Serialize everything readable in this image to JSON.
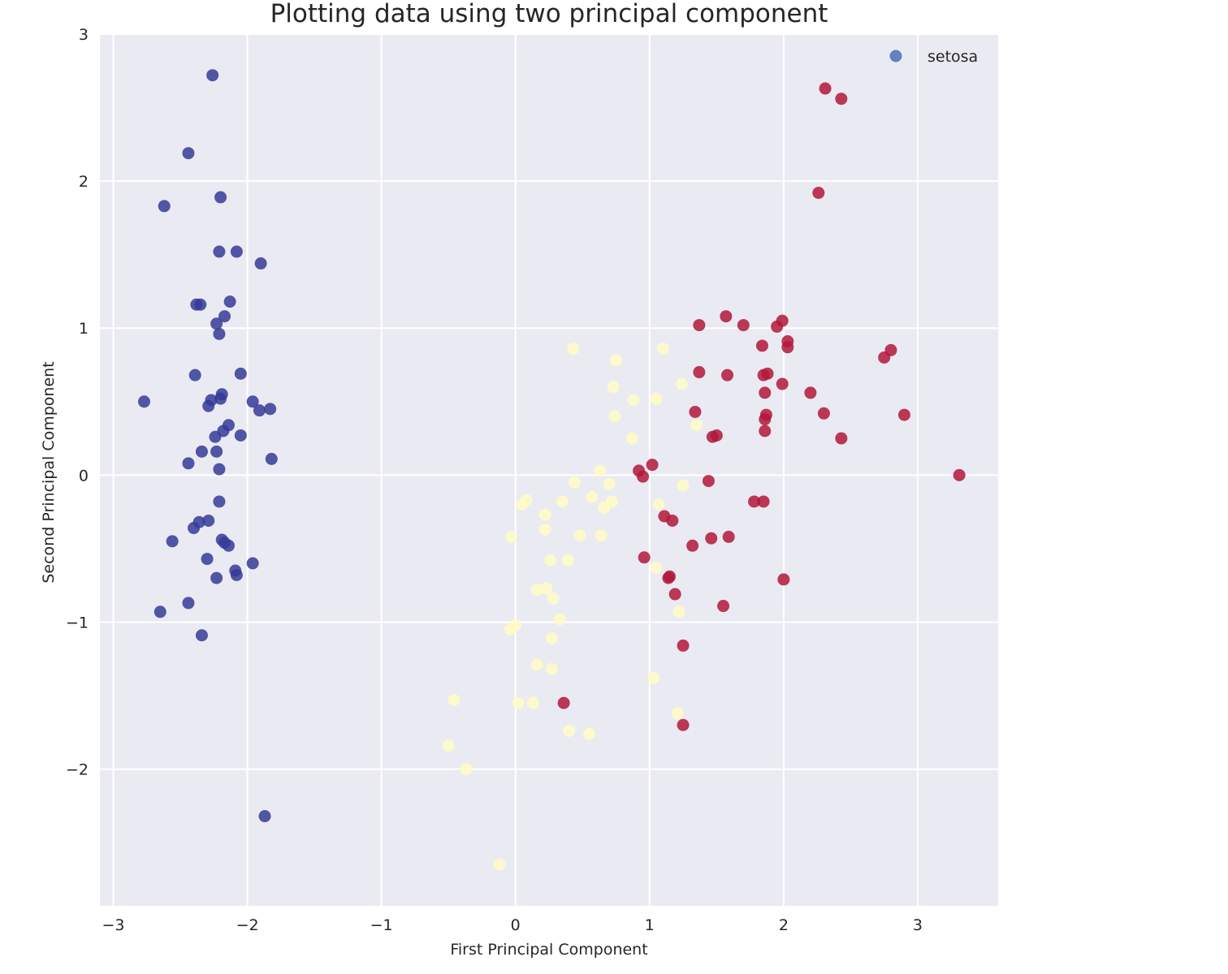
{
  "chart_data": {
    "type": "scatter",
    "title": "Plotting data using two principal component",
    "xlabel": "First Principal Component",
    "ylabel": "Second Principal Component",
    "xlim": [
      -3.1,
      3.6
    ],
    "ylim": [
      -2.93,
      3.0
    ],
    "xticks": [
      -3,
      -2,
      -1,
      0,
      1,
      2,
      3
    ],
    "xtick_labels": [
      "−3",
      "−2",
      "−1",
      "0",
      "1",
      "2",
      "3"
    ],
    "yticks": [
      -2,
      -1,
      0,
      1,
      2,
      3
    ],
    "ytick_labels": [
      "−2",
      "−1",
      "0",
      "1",
      "2",
      "3"
    ],
    "grid": true,
    "background": "#eaeaf2",
    "legend": {
      "position": "top-right",
      "entries": [
        {
          "label": "setosa",
          "color": "#6283bf"
        }
      ]
    },
    "series": [
      {
        "color": "#353b98",
        "points": [
          [
            -2.26,
            2.72
          ],
          [
            -2.44,
            2.19
          ],
          [
            -2.62,
            1.83
          ],
          [
            -2.2,
            1.89
          ],
          [
            -2.21,
            1.52
          ],
          [
            -2.08,
            1.52
          ],
          [
            -1.9,
            1.44
          ],
          [
            -2.38,
            1.16
          ],
          [
            -2.35,
            1.16
          ],
          [
            -2.13,
            1.18
          ],
          [
            -2.17,
            1.08
          ],
          [
            -2.23,
            1.03
          ],
          [
            -2.21,
            0.96
          ],
          [
            -2.39,
            0.68
          ],
          [
            -2.05,
            0.69
          ],
          [
            -2.77,
            0.5
          ],
          [
            -2.19,
            0.55
          ],
          [
            -2.27,
            0.51
          ],
          [
            -2.29,
            0.47
          ],
          [
            -2.2,
            0.52
          ],
          [
            -1.96,
            0.5
          ],
          [
            -1.91,
            0.44
          ],
          [
            -1.83,
            0.45
          ],
          [
            -2.14,
            0.34
          ],
          [
            -2.18,
            0.3
          ],
          [
            -2.05,
            0.27
          ],
          [
            -2.24,
            0.26
          ],
          [
            -2.34,
            0.16
          ],
          [
            -2.23,
            0.16
          ],
          [
            -1.82,
            0.11
          ],
          [
            -2.44,
            0.08
          ],
          [
            -2.21,
            0.04
          ],
          [
            -2.21,
            -0.18
          ],
          [
            -2.29,
            -0.31
          ],
          [
            -2.36,
            -0.32
          ],
          [
            -2.4,
            -0.36
          ],
          [
            -2.56,
            -0.45
          ],
          [
            -2.19,
            -0.44
          ],
          [
            -2.17,
            -0.46
          ],
          [
            -2.14,
            -0.48
          ],
          [
            -2.3,
            -0.57
          ],
          [
            -1.96,
            -0.6
          ],
          [
            -2.09,
            -0.65
          ],
          [
            -2.08,
            -0.68
          ],
          [
            -2.23,
            -0.7
          ],
          [
            -2.65,
            -0.93
          ],
          [
            -2.44,
            -0.87
          ],
          [
            -2.34,
            -1.09
          ],
          [
            -1.87,
            -2.32
          ]
        ]
      },
      {
        "color": "#fffcc6",
        "points": [
          [
            0.43,
            0.86
          ],
          [
            0.75,
            0.78
          ],
          [
            1.1,
            0.86
          ],
          [
            0.73,
            0.6
          ],
          [
            1.24,
            0.62
          ],
          [
            0.88,
            0.51
          ],
          [
            1.05,
            0.52
          ],
          [
            0.74,
            0.4
          ],
          [
            1.35,
            0.34
          ],
          [
            0.87,
            0.25
          ],
          [
            0.63,
            0.03
          ],
          [
            0.44,
            -0.05
          ],
          [
            0.7,
            -0.06
          ],
          [
            1.25,
            -0.07
          ],
          [
            0.08,
            -0.17
          ],
          [
            0.05,
            -0.2
          ],
          [
            0.35,
            -0.18
          ],
          [
            0.57,
            -0.15
          ],
          [
            0.72,
            -0.18
          ],
          [
            0.66,
            -0.22
          ],
          [
            1.07,
            -0.2
          ],
          [
            0.22,
            -0.27
          ],
          [
            0.22,
            -0.37
          ],
          [
            -0.03,
            -0.42
          ],
          [
            0.48,
            -0.41
          ],
          [
            0.64,
            -0.41
          ],
          [
            0.26,
            -0.58
          ],
          [
            0.39,
            -0.58
          ],
          [
            1.05,
            -0.63
          ],
          [
            0.16,
            -0.78
          ],
          [
            0.23,
            -0.77
          ],
          [
            0.28,
            -0.84
          ],
          [
            0.33,
            -0.98
          ],
          [
            0.27,
            -1.11
          ],
          [
            -0.04,
            -1.05
          ],
          [
            0.0,
            -1.02
          ],
          [
            0.16,
            -1.29
          ],
          [
            0.27,
            -1.32
          ],
          [
            1.03,
            -1.38
          ],
          [
            1.22,
            -0.93
          ],
          [
            -0.46,
            -1.53
          ],
          [
            0.02,
            -1.55
          ],
          [
            0.13,
            -1.55
          ],
          [
            1.21,
            -1.62
          ],
          [
            0.4,
            -1.74
          ],
          [
            0.55,
            -1.76
          ],
          [
            -0.5,
            -1.84
          ],
          [
            -0.37,
            -2.0
          ],
          [
            -0.12,
            -2.65
          ]
        ]
      },
      {
        "color": "#b2183a",
        "points": [
          [
            2.31,
            2.63
          ],
          [
            2.43,
            2.56
          ],
          [
            2.26,
            1.92
          ],
          [
            1.57,
            1.08
          ],
          [
            1.37,
            1.02
          ],
          [
            1.7,
            1.02
          ],
          [
            1.99,
            1.05
          ],
          [
            1.95,
            1.01
          ],
          [
            2.03,
            0.91
          ],
          [
            2.03,
            0.87
          ],
          [
            1.84,
            0.88
          ],
          [
            2.8,
            0.85
          ],
          [
            2.75,
            0.8
          ],
          [
            1.37,
            0.7
          ],
          [
            1.58,
            0.68
          ],
          [
            1.88,
            0.69
          ],
          [
            1.85,
            0.68
          ],
          [
            1.99,
            0.62
          ],
          [
            1.86,
            0.56
          ],
          [
            2.2,
            0.56
          ],
          [
            1.34,
            0.43
          ],
          [
            1.87,
            0.41
          ],
          [
            1.86,
            0.38
          ],
          [
            2.3,
            0.42
          ],
          [
            2.9,
            0.41
          ],
          [
            1.86,
            0.3
          ],
          [
            1.5,
            0.27
          ],
          [
            1.47,
            0.26
          ],
          [
            2.43,
            0.25
          ],
          [
            1.02,
            0.07
          ],
          [
            0.92,
            0.03
          ],
          [
            0.95,
            -0.01
          ],
          [
            3.31,
            0.0
          ],
          [
            1.44,
            -0.04
          ],
          [
            1.78,
            -0.18
          ],
          [
            1.85,
            -0.18
          ],
          [
            1.11,
            -0.28
          ],
          [
            1.17,
            -0.31
          ],
          [
            1.59,
            -0.42
          ],
          [
            1.46,
            -0.43
          ],
          [
            1.32,
            -0.48
          ],
          [
            0.96,
            -0.56
          ],
          [
            1.15,
            -0.69
          ],
          [
            1.14,
            -0.7
          ],
          [
            2.0,
            -0.71
          ],
          [
            1.19,
            -0.81
          ],
          [
            1.55,
            -0.89
          ],
          [
            1.25,
            -1.16
          ],
          [
            0.36,
            -1.55
          ],
          [
            1.25,
            -1.7
          ]
        ]
      }
    ]
  }
}
